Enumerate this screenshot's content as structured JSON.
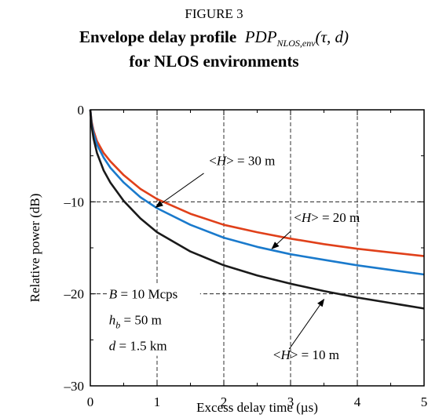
{
  "figure": {
    "label": "FIGURE 3",
    "title_line1_prefix": "Envelope delay profile",
    "title_pdp": "PDP",
    "title_pdp_sub": "NLOS,env",
    "title_args": "(τ, d)",
    "title_line2": "for NLOS environments"
  },
  "chart_data": {
    "type": "line",
    "xlabel": "Excess delay time (µs)",
    "ylabel": "Relative power (dB)",
    "xlim": [
      0,
      5
    ],
    "ylim": [
      -30,
      0
    ],
    "xticks": [
      0,
      1,
      2,
      3,
      4,
      5
    ],
    "yticks": [
      0,
      -10,
      -20,
      -30
    ],
    "ytick_labels": [
      "0",
      "–10",
      "–20",
      "–30"
    ],
    "grid": true,
    "grid_style": "dashed",
    "x": [
      0,
      0.02,
      0.05,
      0.1,
      0.2,
      0.3,
      0.5,
      0.75,
      1,
      1.5,
      2,
      2.5,
      3,
      3.5,
      4,
      4.5,
      5
    ],
    "series": [
      {
        "name": "<H> = 30 m",
        "color": "#e0401a",
        "values": [
          0,
          -1.3,
          -2.3,
          -3.4,
          -4.7,
          -5.6,
          -7.1,
          -8.6,
          -9.7,
          -11.3,
          -12.5,
          -13.3,
          -14.0,
          -14.6,
          -15.1,
          -15.5,
          -15.9
        ]
      },
      {
        "name": "<H> = 20 m",
        "color": "#1a7acc",
        "values": [
          0,
          -1.5,
          -2.6,
          -3.8,
          -5.2,
          -6.3,
          -7.9,
          -9.5,
          -10.7,
          -12.5,
          -13.9,
          -14.9,
          -15.7,
          -16.3,
          -16.9,
          -17.4,
          -17.9
        ]
      },
      {
        "name": "<H> = 10 m",
        "color": "#1a1a1a",
        "values": [
          0,
          -1.8,
          -3.2,
          -4.7,
          -6.6,
          -7.9,
          -9.9,
          -11.8,
          -13.3,
          -15.4,
          -16.9,
          -18.0,
          -18.9,
          -19.7,
          -20.4,
          -21.0,
          -21.6
        ]
      }
    ],
    "annotations": [
      {
        "series": "<H> = 30 m",
        "prefix": "<",
        "var": "H",
        "suffix": "> = 30 m",
        "label_at": [
          1.78,
          -6.0
        ],
        "arrow_from": [
          1.7,
          -6.9
        ],
        "arrow_to": [
          0.98,
          -10.6
        ]
      },
      {
        "series": "<H> = 20 m",
        "prefix": "<",
        "var": "H",
        "suffix": "> = 20 m",
        "label_at": [
          3.05,
          -12.2
        ],
        "arrow_from": [
          3.0,
          -13.2
        ],
        "arrow_to": [
          2.72,
          -15.1
        ]
      },
      {
        "series": "<H> = 10 m",
        "prefix": "<",
        "var": "H",
        "suffix": "> = 10 m",
        "label_at": [
          2.74,
          -27.1
        ],
        "arrow_from": [
          2.98,
          -26.0
        ],
        "arrow_to": [
          3.5,
          -20.6
        ]
      }
    ],
    "params": [
      {
        "var": "B",
        "sub": "",
        "text": " = 10 Mcps"
      },
      {
        "var": "h",
        "sub": "b",
        "text": " = 50 m"
      },
      {
        "var": "d",
        "sub": "",
        "text": " = 1.5 km"
      }
    ]
  }
}
